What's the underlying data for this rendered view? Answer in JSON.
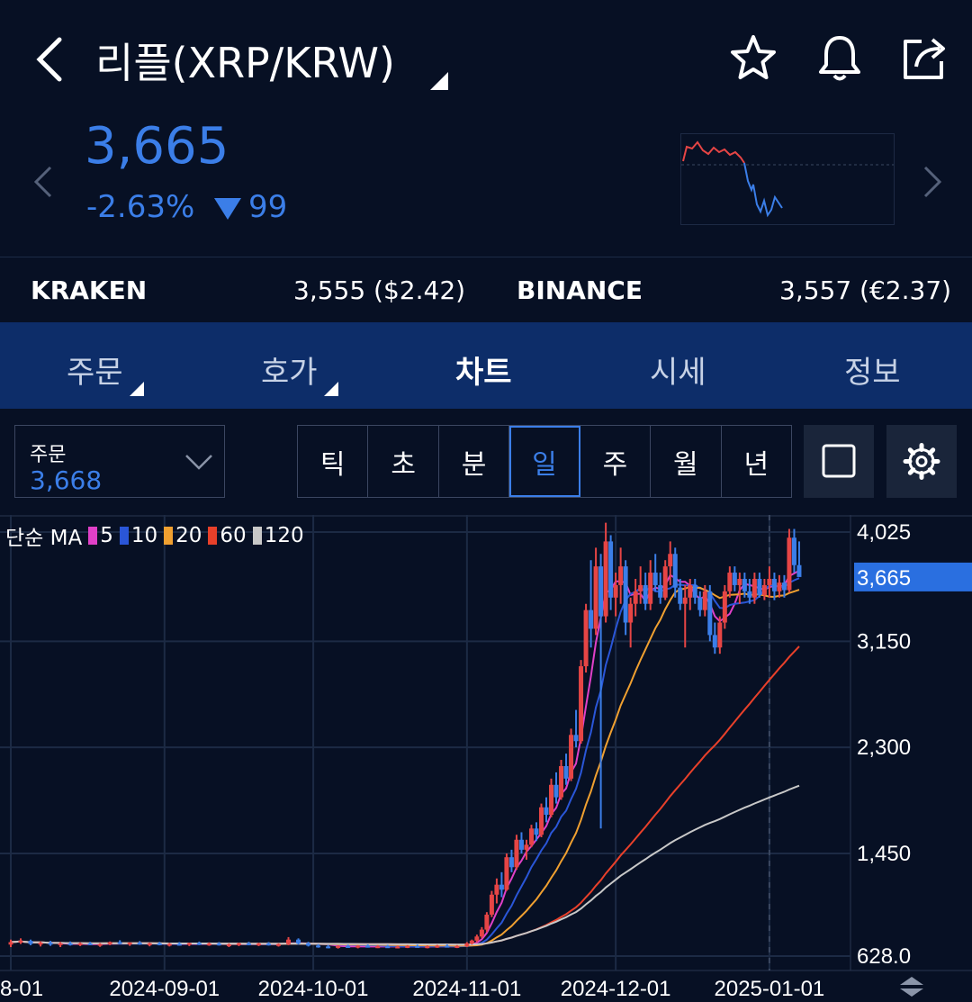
{
  "header": {
    "title": "리플(XRP/KRW)",
    "icons": [
      "chevron-left-icon",
      "star-icon",
      "bell-icon",
      "share-icon"
    ]
  },
  "quote": {
    "price": "3,665",
    "change_pct": "-2.63%",
    "change_abs": "99",
    "colors": {
      "up": "#e64545",
      "down": "#3b7ee8"
    }
  },
  "exchanges": [
    {
      "name": "KRAKEN",
      "value": "3,555 ($2.42)"
    },
    {
      "name": "BINANCE",
      "value": "3,557 (€2.37)"
    }
  ],
  "tabs": [
    {
      "label": "주문",
      "active": false,
      "has_caret": true
    },
    {
      "label": "호가",
      "active": false,
      "has_caret": true
    },
    {
      "label": "차트",
      "active": true,
      "has_caret": false
    },
    {
      "label": "시세",
      "active": false,
      "has_caret": false
    },
    {
      "label": "정보",
      "active": false,
      "has_caret": false
    }
  ],
  "order_select": {
    "label": "주문",
    "value": "3,668"
  },
  "periods": [
    {
      "label": "틱",
      "active": false
    },
    {
      "label": "초",
      "active": false
    },
    {
      "label": "분",
      "active": false
    },
    {
      "label": "일",
      "active": true
    },
    {
      "label": "주",
      "active": false
    },
    {
      "label": "월",
      "active": false
    },
    {
      "label": "년",
      "active": false
    }
  ],
  "chart_data": {
    "type": "line",
    "legend": {
      "prefix": "단순 MA",
      "items": [
        {
          "name": "5",
          "color": "#e040c8"
        },
        {
          "name": "10",
          "color": "#2a56d8"
        },
        {
          "name": "20",
          "color": "#f0a030"
        },
        {
          "name": "60",
          "color": "#e8402a"
        },
        {
          "name": "120",
          "color": "#c8c8c8"
        }
      ]
    },
    "y_ticks": [
      "4,025",
      "3,150",
      "2,300",
      "1,450",
      "628.0"
    ],
    "y_tick_values": [
      4025,
      3150,
      2300,
      1450,
      628
    ],
    "ylim": [
      600,
      4150
    ],
    "current_price_label": "3,665",
    "current_price": 3665,
    "x_ticks": [
      "8-01",
      "2024-09-01",
      "2024-10-01",
      "2024-11-01",
      "2024-12-01",
      "2025-01-01"
    ],
    "x_tick_days": [
      0,
      31,
      61,
      92,
      122,
      153
    ],
    "x_range_days": [
      0,
      163
    ],
    "candles": [
      [
        0,
        720,
        760,
        700,
        740
      ],
      [
        2,
        740,
        770,
        725,
        750
      ],
      [
        4,
        750,
        760,
        715,
        725
      ],
      [
        6,
        725,
        745,
        705,
        735
      ],
      [
        8,
        735,
        750,
        710,
        720
      ],
      [
        10,
        720,
        740,
        700,
        730
      ],
      [
        12,
        730,
        745,
        712,
        722
      ],
      [
        14,
        722,
        738,
        708,
        730
      ],
      [
        16,
        730,
        742,
        715,
        718
      ],
      [
        18,
        718,
        732,
        702,
        725
      ],
      [
        20,
        725,
        745,
        715,
        740
      ],
      [
        22,
        740,
        755,
        722,
        728
      ],
      [
        24,
        728,
        740,
        710,
        735
      ],
      [
        26,
        735,
        748,
        718,
        724
      ],
      [
        28,
        724,
        736,
        706,
        730
      ],
      [
        30,
        730,
        742,
        714,
        720
      ],
      [
        32,
        720,
        734,
        705,
        726
      ],
      [
        34,
        726,
        740,
        712,
        722
      ],
      [
        36,
        722,
        736,
        708,
        732
      ],
      [
        38,
        732,
        744,
        716,
        724
      ],
      [
        40,
        724,
        738,
        710,
        728
      ],
      [
        42,
        728,
        740,
        712,
        716
      ],
      [
        44,
        716,
        730,
        700,
        722
      ],
      [
        46,
        722,
        736,
        708,
        730
      ],
      [
        48,
        730,
        742,
        714,
        720
      ],
      [
        50,
        720,
        735,
        708,
        728
      ],
      [
        52,
        728,
        740,
        712,
        718
      ],
      [
        54,
        718,
        730,
        704,
        724
      ],
      [
        56,
        724,
        780,
        715,
        760
      ],
      [
        58,
        760,
        770,
        720,
        730
      ],
      [
        60,
        730,
        742,
        705,
        712
      ],
      [
        62,
        712,
        724,
        695,
        705
      ],
      [
        64,
        705,
        718,
        690,
        700
      ],
      [
        66,
        700,
        714,
        688,
        708
      ],
      [
        68,
        708,
        720,
        694,
        702
      ],
      [
        70,
        702,
        716,
        690,
        710
      ],
      [
        72,
        710,
        722,
        696,
        704
      ],
      [
        74,
        704,
        716,
        692,
        706
      ],
      [
        76,
        706,
        718,
        694,
        700
      ],
      [
        78,
        700,
        712,
        690,
        704
      ],
      [
        80,
        704,
        716,
        692,
        708
      ],
      [
        82,
        708,
        720,
        696,
        702
      ],
      [
        84,
        702,
        714,
        690,
        706
      ],
      [
        86,
        706,
        718,
        694,
        710
      ],
      [
        88,
        710,
        722,
        698,
        704
      ],
      [
        90,
        704,
        716,
        692,
        708
      ],
      [
        92,
        708,
        740,
        700,
        730
      ],
      [
        93,
        730,
        760,
        720,
        752
      ],
      [
        94,
        752,
        800,
        740,
        785
      ],
      [
        95,
        785,
        860,
        770,
        840
      ],
      [
        96,
        840,
        980,
        820,
        960
      ],
      [
        97,
        960,
        1150,
        940,
        1120
      ],
      [
        98,
        1120,
        1250,
        1050,
        1200
      ],
      [
        99,
        1200,
        1300,
        1100,
        1160
      ],
      [
        100,
        1160,
        1450,
        1150,
        1420
      ],
      [
        101,
        1420,
        1480,
        1300,
        1340
      ],
      [
        102,
        1340,
        1600,
        1320,
        1560
      ],
      [
        103,
        1560,
        1620,
        1450,
        1480
      ],
      [
        104,
        1480,
        1560,
        1400,
        1520
      ],
      [
        105,
        1520,
        1680,
        1500,
        1650
      ],
      [
        106,
        1650,
        1700,
        1550,
        1600
      ],
      [
        107,
        1600,
        1850,
        1580,
        1820
      ],
      [
        108,
        1820,
        1900,
        1700,
        1760
      ],
      [
        109,
        1760,
        2050,
        1740,
        2000
      ],
      [
        110,
        2000,
        2100,
        1850,
        1900
      ],
      [
        111,
        1900,
        2200,
        1880,
        2150
      ],
      [
        112,
        2150,
        2250,
        2000,
        2050
      ],
      [
        113,
        2050,
        2450,
        2030,
        2400
      ],
      [
        114,
        2400,
        2600,
        2300,
        2350
      ],
      [
        115,
        2350,
        3000,
        2330,
        2950
      ],
      [
        116,
        2950,
        3450,
        2900,
        3400
      ],
      [
        117,
        3400,
        3800,
        3100,
        3250
      ],
      [
        118,
        3250,
        3900,
        3200,
        3750
      ],
      [
        119,
        3750,
        3850,
        1650,
        3350
      ],
      [
        120,
        3350,
        4100,
        3300,
        3950
      ],
      [
        121,
        3950,
        4000,
        3400,
        3500
      ],
      [
        122,
        3500,
        3700,
        3350,
        3600
      ],
      [
        123,
        3600,
        3900,
        3450,
        3750
      ],
      [
        124,
        3750,
        3800,
        3200,
        3300
      ],
      [
        125,
        3300,
        3500,
        3100,
        3450
      ],
      [
        126,
        3450,
        3650,
        3350,
        3550
      ],
      [
        127,
        3550,
        3750,
        3450,
        3600
      ],
      [
        128,
        3600,
        3700,
        3400,
        3450
      ],
      [
        129,
        3450,
        3800,
        3400,
        3700
      ],
      [
        130,
        3700,
        3850,
        3550,
        3600
      ],
      [
        131,
        3600,
        3700,
        3450,
        3500
      ],
      [
        132,
        3500,
        3800,
        3480,
        3750
      ],
      [
        133,
        3750,
        3950,
        3600,
        3850
      ],
      [
        134,
        3850,
        3900,
        3500,
        3580
      ],
      [
        135,
        3580,
        3650,
        3400,
        3450
      ],
      [
        136,
        3450,
        3600,
        3100,
        3500
      ],
      [
        137,
        3500,
        3650,
        3400,
        3600
      ],
      [
        138,
        3600,
        3650,
        3450,
        3500
      ],
      [
        139,
        3500,
        3550,
        3350,
        3400
      ],
      [
        140,
        3400,
        3600,
        3350,
        3550
      ],
      [
        141,
        3550,
        3600,
        3150,
        3200
      ],
      [
        142,
        3200,
        3300,
        3050,
        3100
      ],
      [
        143,
        3100,
        3350,
        3050,
        3300
      ],
      [
        144,
        3300,
        3600,
        3250,
        3550
      ],
      [
        145,
        3550,
        3750,
        3500,
        3700
      ],
      [
        146,
        3700,
        3750,
        3550,
        3600
      ],
      [
        147,
        3600,
        3700,
        3450,
        3650
      ],
      [
        148,
        3650,
        3700,
        3500,
        3550
      ],
      [
        149,
        3550,
        3650,
        3450,
        3500
      ],
      [
        150,
        3500,
        3700,
        3450,
        3650
      ],
      [
        151,
        3650,
        3700,
        3500,
        3520
      ],
      [
        152,
        3520,
        3650,
        3480,
        3600
      ],
      [
        153,
        3600,
        3750,
        3500,
        3650
      ],
      [
        154,
        3650,
        3700,
        3480,
        3550
      ],
      [
        155,
        3550,
        3680,
        3500,
        3620
      ],
      [
        156,
        3620,
        3680,
        3500,
        3560
      ],
      [
        157,
        3560,
        4050,
        3540,
        3980
      ],
      [
        158,
        3980,
        4050,
        3700,
        3760
      ],
      [
        159,
        3760,
        3950,
        3700,
        3665
      ]
    ]
  }
}
